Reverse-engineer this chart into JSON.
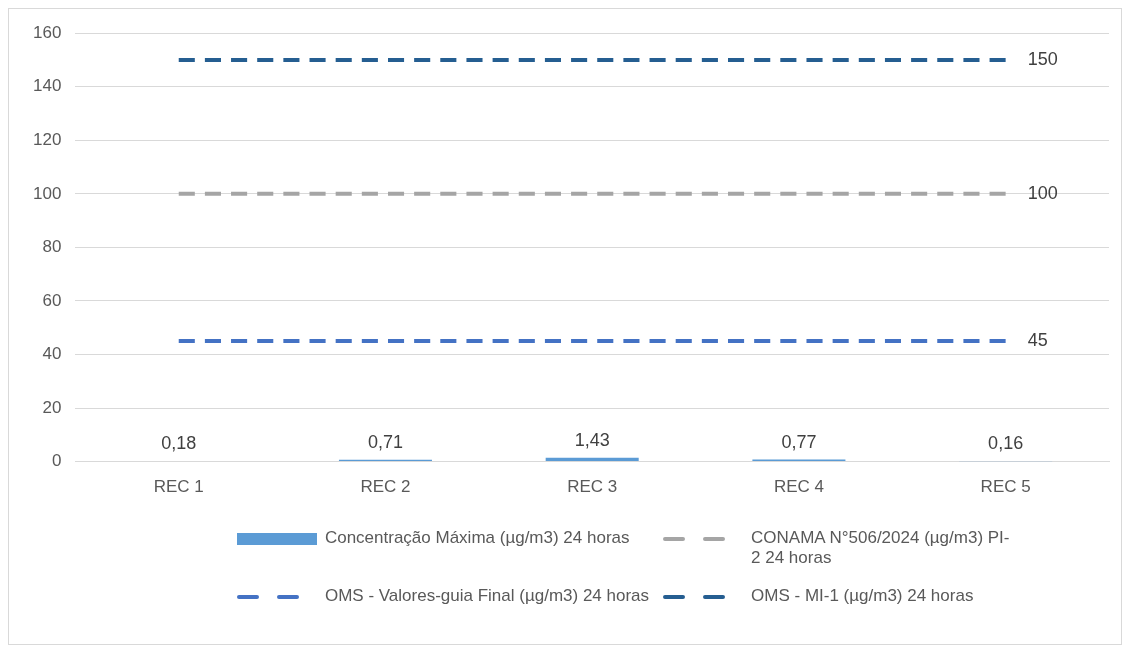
{
  "chart_data": {
    "type": "bar",
    "categories": [
      "REC 1",
      "REC 2",
      "REC 3",
      "REC 4",
      "REC 5"
    ],
    "series": [
      {
        "name": "Concentração Máxima (µg/m3) 24 horas",
        "color": "#5b9bd5",
        "values": [
          0.18,
          0.71,
          1.43,
          0.77,
          0.16
        ],
        "value_labels": [
          "0,18",
          "0,71",
          "1,43",
          "0,77",
          "0,16"
        ]
      },
      {
        "name": "CONAMA N°506/2024 (µg/m3) PI-2 24 horas",
        "type": "line",
        "color": "#a5a5a5",
        "line_style": "dashed",
        "values": [
          100,
          100,
          100,
          100,
          100
        ],
        "value_labels": [
          null,
          null,
          null,
          null,
          "100"
        ]
      },
      {
        "name": "OMS - Valores-guia Final (µg/m3) 24 horas",
        "type": "line",
        "color": "#4472c4",
        "line_style": "dashed",
        "values": [
          45,
          45,
          45,
          45,
          45
        ],
        "value_labels": [
          null,
          null,
          null,
          null,
          "45"
        ]
      },
      {
        "name": "OMS - MI-1 (µg/m3) 24 horas",
        "type": "line",
        "color": "#255e91",
        "line_style": "dashed",
        "values": [
          150,
          150,
          150,
          150,
          150
        ],
        "value_labels": [
          null,
          null,
          null,
          null,
          "150"
        ]
      }
    ],
    "ylim": [
      0,
      160
    ],
    "yticks": [
      0,
      20,
      40,
      60,
      80,
      100,
      120,
      140,
      160
    ],
    "grid": "y",
    "legend": "bottom",
    "marker": "none"
  }
}
